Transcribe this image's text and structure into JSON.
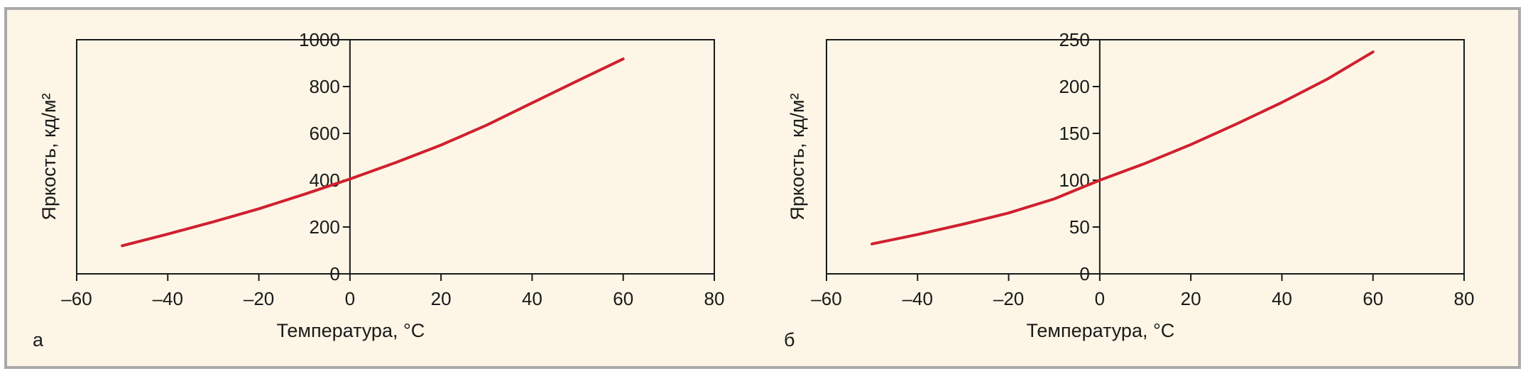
{
  "chart_data": [
    {
      "type": "line",
      "panel_label": "а",
      "xlabel": "Температура, °С",
      "ylabel": "Яркость, кд/м²",
      "xlim": [
        -60,
        80
      ],
      "ylim": [
        0,
        1000
      ],
      "xticks": [
        -60,
        -40,
        -20,
        0,
        20,
        40,
        60,
        80
      ],
      "xtick_labels": [
        "–60",
        "–40",
        "–20",
        "0",
        "20",
        "40",
        "60",
        "80"
      ],
      "yticks": [
        0,
        200,
        400,
        600,
        800,
        1000
      ],
      "ytick_labels": [
        "0",
        "200",
        "400",
        "600",
        "800",
        "1000"
      ],
      "grid": false,
      "series": [
        {
          "color": "#d0202e",
          "x": [
            -50,
            -40,
            -30,
            -20,
            -10,
            0,
            10,
            20,
            30,
            40,
            50,
            60
          ],
          "y": [
            120,
            170,
            222,
            278,
            340,
            405,
            475,
            550,
            635,
            730,
            825,
            918
          ]
        }
      ]
    },
    {
      "type": "line",
      "panel_label": "б",
      "xlabel": "Температура, °С",
      "ylabel": "Яркость, кд/м²",
      "xlim": [
        -60,
        80
      ],
      "ylim": [
        0,
        250
      ],
      "xticks": [
        -60,
        -40,
        -20,
        0,
        20,
        40,
        60,
        80
      ],
      "xtick_labels": [
        "–60",
        "–40",
        "–20",
        "0",
        "20",
        "40",
        "60",
        "80"
      ],
      "yticks": [
        0,
        50,
        100,
        150,
        200,
        250
      ],
      "ytick_labels": [
        "0",
        "50",
        "100",
        "150",
        "200",
        "250"
      ],
      "grid": false,
      "series": [
        {
          "color": "#d0202e",
          "x": [
            -50,
            -40,
            -30,
            -20,
            -10,
            0,
            10,
            20,
            30,
            40,
            50,
            60
          ],
          "y": [
            32,
            42,
            53,
            65,
            80,
            100,
            118,
            138,
            160,
            183,
            208,
            237
          ]
        }
      ]
    }
  ]
}
